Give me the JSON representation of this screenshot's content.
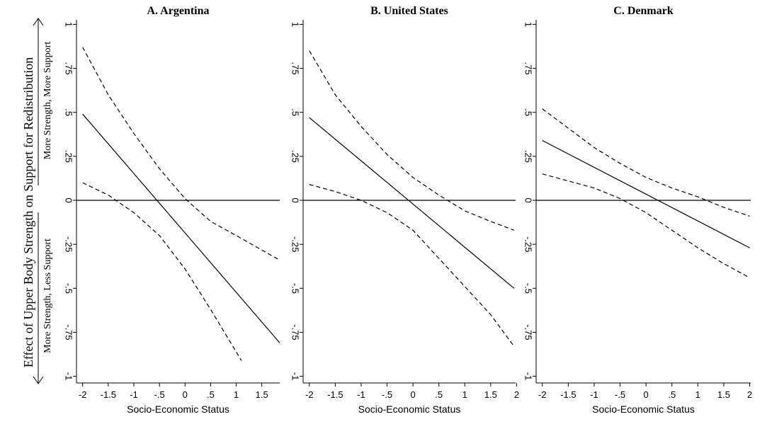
{
  "chart_data": [
    {
      "type": "line",
      "title": "A. Argentina",
      "xlabel": "Socio-Economic Status",
      "ylabel": "Effect of Upper Body Strength on Support for Redistribution",
      "annotations": [
        "More Strength, More Support",
        "More Strength, Less Support"
      ],
      "xlim": [
        -2.12,
        1.85
      ],
      "ylim": [
        -1.05,
        1.05
      ],
      "hline": 0,
      "xticks": [
        -2,
        -1.5,
        -1,
        {
          "value": -0.5,
          "label": "-.5"
        },
        0,
        {
          "value": 0.5,
          "label": ".5"
        },
        1,
        1.5
      ],
      "yticks": [
        {
          "value": 1,
          "label": "1"
        },
        {
          "value": 0.75,
          "label": ".75"
        },
        {
          "value": 0.5,
          "label": ".5"
        },
        {
          "value": 0.25,
          "label": ".25"
        },
        0,
        {
          "value": -0.25,
          "label": "-.25"
        },
        {
          "value": -0.5,
          "label": "-.5"
        },
        {
          "value": -0.75,
          "label": "-.75"
        },
        {
          "value": -1,
          "label": "-1"
        }
      ],
      "series": [
        {
          "color": "#000000",
          "dashed": false,
          "x": [
            -2,
            1.85
          ],
          "values": [
            0.49,
            -0.81
          ]
        },
        {
          "color": "#000000",
          "dashed": true,
          "x": [
            -2,
            -1.5,
            -1,
            -0.5,
            0,
            0.5,
            1,
            1.85
          ],
          "values": [
            0.87,
            0.6,
            0.38,
            0.18,
            0.01,
            -0.12,
            -0.2,
            -0.34
          ]
        },
        {
          "color": "#000000",
          "dashed": true,
          "x": [
            -2,
            -1.5,
            -1,
            -0.5,
            0,
            0.5,
            1.1
          ],
          "values": [
            0.1,
            0.03,
            -0.07,
            -0.2,
            -0.39,
            -0.62,
            -0.91
          ]
        }
      ]
    },
    {
      "type": "line",
      "title": "B. United States",
      "xlabel": "Socio-Economic Status",
      "xlim": [
        -2.12,
        1.98
      ],
      "ylim": [
        -1.05,
        1.05
      ],
      "hline": 0,
      "xticks": [
        -2,
        -1.5,
        -1,
        {
          "value": -0.5,
          "label": "-.5"
        },
        0,
        {
          "value": 0.5,
          "label": ".5"
        },
        1,
        1.5,
        2
      ],
      "yticks": [
        {
          "value": 1,
          "label": "1"
        },
        {
          "value": 0.75,
          "label": ".75"
        },
        {
          "value": 0.5,
          "label": ".5"
        },
        {
          "value": 0.25,
          "label": ".25"
        },
        0,
        {
          "value": -0.25,
          "label": "-.25"
        },
        {
          "value": -0.5,
          "label": "-.5"
        },
        {
          "value": -0.75,
          "label": "-.75"
        },
        {
          "value": -1,
          "label": "-1"
        }
      ],
      "series": [
        {
          "color": "#000000",
          "dashed": false,
          "x": [
            -2,
            1.95
          ],
          "values": [
            0.47,
            -0.5
          ]
        },
        {
          "color": "#000000",
          "dashed": true,
          "x": [
            -2,
            -1.5,
            -1,
            -0.5,
            0,
            0.5,
            1,
            1.5,
            1.95
          ],
          "values": [
            0.85,
            0.6,
            0.42,
            0.26,
            0.13,
            0.03,
            -0.06,
            -0.12,
            -0.17
          ]
        },
        {
          "color": "#000000",
          "dashed": true,
          "x": [
            -2,
            -1.5,
            -1,
            -0.5,
            0,
            0.5,
            1,
            1.5,
            1.95
          ],
          "values": [
            0.09,
            0.05,
            0.0,
            -0.07,
            -0.17,
            -0.33,
            -0.49,
            -0.65,
            -0.83
          ]
        }
      ]
    },
    {
      "type": "line",
      "title": "C. Denmark",
      "xlabel": "Socio-Economic Status",
      "xlim": [
        -2.12,
        2.02
      ],
      "ylim": [
        -1.05,
        1.05
      ],
      "hline": 0,
      "xticks": [
        -2,
        -1.5,
        -1,
        {
          "value": -0.5,
          "label": "-.5"
        },
        0,
        {
          "value": 0.5,
          "label": ".5"
        },
        1,
        1.5,
        2
      ],
      "yticks": [
        {
          "value": 1,
          "label": "1"
        },
        {
          "value": 0.75,
          "label": ".75"
        },
        {
          "value": 0.5,
          "label": ".5"
        },
        {
          "value": 0.25,
          "label": ".25"
        },
        0,
        {
          "value": -0.25,
          "label": "-.25"
        },
        {
          "value": -0.5,
          "label": "-.5"
        },
        {
          "value": -0.75,
          "label": "-.75"
        },
        {
          "value": -1,
          "label": "-1"
        }
      ],
      "series": [
        {
          "color": "#000000",
          "dashed": false,
          "x": [
            -2,
            2
          ],
          "values": [
            0.34,
            -0.27
          ]
        },
        {
          "color": "#000000",
          "dashed": true,
          "x": [
            -2,
            -1.5,
            -1,
            -0.5,
            0,
            0.5,
            1,
            1.5,
            2
          ],
          "values": [
            0.52,
            0.41,
            0.3,
            0.21,
            0.13,
            0.07,
            0.02,
            -0.04,
            -0.09
          ]
        },
        {
          "color": "#000000",
          "dashed": true,
          "x": [
            -2,
            -1.5,
            -1,
            -0.5,
            0,
            0.5,
            1,
            1.5,
            2
          ],
          "values": [
            0.15,
            0.11,
            0.07,
            0.01,
            -0.07,
            -0.17,
            -0.27,
            -0.36,
            -0.44
          ]
        }
      ]
    }
  ]
}
